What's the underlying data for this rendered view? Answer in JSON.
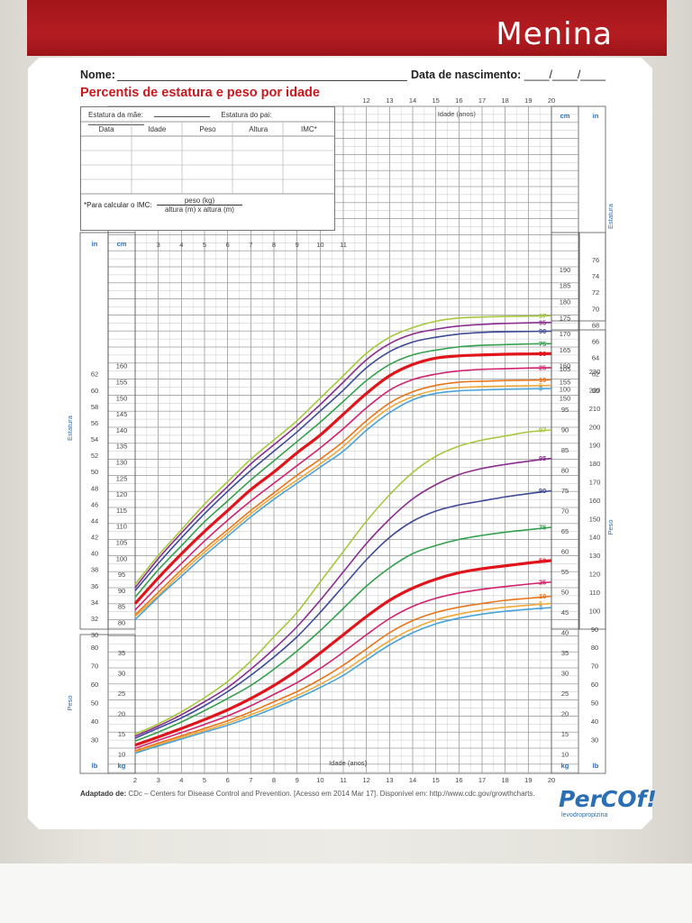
{
  "header": {
    "title": "Menina"
  },
  "form": {
    "name_label": "Nome:",
    "dob_label": "Data de nascimento:",
    "dob_placeholder": "____/____/____",
    "chart_title": "Percentis de estatura e peso por idade",
    "mother_height_label": "Estatura da mãe:",
    "father_height_label": "Estatura do pai:",
    "columns": [
      "Data",
      "Idade",
      "Peso",
      "Altura",
      "IMC*"
    ],
    "bmi_label": "*Para calcular o IMC:",
    "bmi_numerator": "peso (kg)",
    "bmi_denominator": "altura (m) x altura (m)"
  },
  "footer": {
    "adapted_label": "Adaptado de:",
    "source_text": "CDc – Centers for Disease Control and Prevention. [Acesso em 2014 Mar 17]. Disponível em: http://www.cdc.gov/growthcharts."
  },
  "brand": {
    "logo_text": "PerCOf!",
    "logo_sub": "levodropropizina"
  },
  "colors": {
    "p97": "#a6c83c",
    "p95": "#8b2d8f",
    "p90": "#3f4b97",
    "p75": "#33a14e",
    "p50": "#e0141b",
    "p25": "#d2216e",
    "p10": "#e8751a",
    "p5": "#f2a93b",
    "p3": "#4aa3d8"
  },
  "chart_data": [
    {
      "type": "line",
      "title": "Estatura",
      "xlabel": "Idade (anos)",
      "ylabel": "Estatura",
      "unit": "cm",
      "secondary_unit": "in",
      "xlim": [
        2,
        20
      ],
      "ylim": [
        77,
        177
      ],
      "x": [
        2,
        3,
        4,
        5,
        6,
        7,
        8,
        9,
        10,
        11,
        12,
        13,
        14,
        15,
        16,
        17,
        18,
        19,
        20
      ],
      "series": [
        {
          "name": "97",
          "values": [
            92,
            101,
            109,
            117,
            124,
            131,
            137,
            143,
            150,
            157,
            164,
            169,
            172,
            174,
            175,
            175.3,
            175.5,
            175.6,
            175.7
          ]
        },
        {
          "name": "95",
          "values": [
            91,
            100,
            108,
            115.5,
            122.5,
            129.5,
            135.5,
            141.5,
            148,
            155,
            162,
            167,
            170,
            171.5,
            172.5,
            173,
            173.3,
            173.5,
            173.6
          ]
        },
        {
          "name": "90",
          "values": [
            90,
            98.5,
            106.5,
            114,
            121,
            127.5,
            133.5,
            139.5,
            146,
            152.5,
            159.5,
            164.5,
            167.5,
            169,
            170,
            170.5,
            170.7,
            170.8,
            170.9
          ]
        },
        {
          "name": "75",
          "values": [
            88,
            96.5,
            104,
            111.5,
            118,
            124.5,
            130.5,
            136.5,
            142.5,
            149,
            155.5,
            160.5,
            163.5,
            165,
            166,
            166.5,
            166.7,
            166.9,
            167
          ]
        },
        {
          "name": "50",
          "values": [
            86,
            94,
            101.5,
            108.5,
            115,
            121.5,
            127,
            133,
            138.5,
            145,
            151.5,
            157,
            160.5,
            162.5,
            163.2,
            163.5,
            163.7,
            163.8,
            163.9
          ]
        },
        {
          "name": "25",
          "values": [
            84,
            91.5,
            98.5,
            105.5,
            112,
            118,
            123.5,
            129,
            134.5,
            140.5,
            147,
            152.5,
            155.8,
            157.5,
            158.5,
            159,
            159.2,
            159.4,
            159.5
          ]
        },
        {
          "name": "10",
          "values": [
            82.5,
            89.5,
            96.5,
            103,
            109,
            115,
            120.5,
            126,
            131,
            136.5,
            143,
            148.5,
            152,
            154,
            155,
            155.3,
            155.5,
            155.6,
            155.7
          ]
        },
        {
          "name": "5",
          "values": [
            82,
            88.5,
            95.5,
            102,
            108,
            114,
            119.5,
            124.5,
            129.5,
            135,
            141.5,
            147,
            150.5,
            152.5,
            153.3,
            153.6,
            153.8,
            153.9,
            154
          ]
        },
        {
          "name": "3",
          "values": [
            81,
            88,
            94.5,
            101,
            107,
            113,
            118.5,
            123.5,
            128.5,
            133.5,
            140,
            145.5,
            149.5,
            151.5,
            152.3,
            152.6,
            152.8,
            152.9,
            153
          ]
        }
      ]
    },
    {
      "type": "line",
      "title": "Peso",
      "xlabel": "Idade (anos)",
      "ylabel": "Peso",
      "unit": "kg",
      "secondary_unit": "lb",
      "xlim": [
        2,
        20
      ],
      "ylim": [
        8,
        91
      ],
      "x": [
        2,
        3,
        4,
        5,
        6,
        7,
        8,
        9,
        10,
        11,
        12,
        13,
        14,
        15,
        16,
        17,
        18,
        19,
        20
      ],
      "series": [
        {
          "name": "97",
          "values": [
            15,
            17.5,
            20.5,
            24,
            28,
            33,
            39,
            45,
            52.5,
            60,
            67.5,
            74,
            79.5,
            83.5,
            86,
            87.5,
            88.5,
            89.5,
            90
          ]
        },
        {
          "name": "95",
          "values": [
            14.5,
            17,
            19.8,
            23,
            26.5,
            31,
            36,
            41.5,
            48,
            55,
            62,
            68,
            73,
            76.5,
            79,
            80.5,
            81.5,
            82.3,
            83
          ]
        },
        {
          "name": "90",
          "values": [
            14,
            16.5,
            19,
            22,
            25.5,
            29.5,
            34,
            39,
            45,
            51.5,
            58,
            63.5,
            67.5,
            70,
            71.5,
            72.5,
            73.5,
            74.3,
            75
          ]
        },
        {
          "name": "75",
          "values": [
            13.3,
            15.5,
            18,
            20.8,
            23.8,
            27,
            31,
            35.5,
            40.5,
            46,
            51.5,
            56,
            59.5,
            61.5,
            63,
            64,
            64.8,
            65.4,
            66
          ]
        },
        {
          "name": "50",
          "values": [
            12.3,
            14.3,
            16.4,
            18.6,
            21,
            23.8,
            27,
            30.7,
            35,
            39.5,
            44,
            48,
            51,
            53.2,
            54.8,
            55.8,
            56.5,
            57.2,
            57.8
          ]
        },
        {
          "name": "25",
          "values": [
            11.5,
            13.5,
            15.4,
            17.4,
            19.5,
            22,
            24.8,
            27.7,
            31.2,
            35.2,
            39.5,
            43.5,
            46.5,
            48.5,
            49.8,
            50.7,
            51.4,
            52,
            52.5
          ]
        },
        {
          "name": "10",
          "values": [
            10.9,
            12.8,
            14.6,
            16.4,
            18.3,
            20.5,
            23,
            25.5,
            28.5,
            32,
            36,
            40,
            43,
            45,
            46.3,
            47.2,
            48,
            48.5,
            49
          ]
        },
        {
          "name": "5",
          "values": [
            10.6,
            12.4,
            14.2,
            15.9,
            17.7,
            19.8,
            22,
            24.5,
            27.3,
            30.5,
            34.3,
            38,
            41,
            43.2,
            44.6,
            45.6,
            46.3,
            46.8,
            47.2
          ]
        },
        {
          "name": "3",
          "values": [
            10.3,
            12.1,
            13.8,
            15.5,
            17.2,
            19.2,
            21.4,
            23.8,
            26.5,
            29.5,
            33.3,
            37,
            40,
            42.2,
            43.6,
            44.6,
            45.3,
            45.8,
            46.2
          ]
        }
      ]
    }
  ],
  "axes": {
    "age_label": "Idade (anos)",
    "height_axis_title": "Estatura",
    "weight_axis_title": "Peso",
    "cm_label": "cm",
    "in_label": "in",
    "kg_label": "kg",
    "lb_label": "lb",
    "bottom_ticks": [
      "2",
      "3",
      "4",
      "5",
      "6",
      "7",
      "8",
      "9",
      "10",
      "11",
      "12",
      "13",
      "14",
      "15",
      "16",
      "17",
      "18",
      "19",
      "20"
    ],
    "top_ticks": [
      "12",
      "13",
      "14",
      "15",
      "16",
      "17",
      "18",
      "19",
      "20"
    ],
    "mid_ticks": [
      "3",
      "4",
      "5",
      "6",
      "7",
      "8",
      "9",
      "10",
      "11"
    ],
    "left_cm_ticks": [
      "80",
      "85",
      "90",
      "95",
      "100",
      "105",
      "110",
      "115",
      "120",
      "125",
      "130",
      "135",
      "140",
      "145",
      "150",
      "155",
      "160"
    ],
    "left_in_ticks": [
      "30",
      "32",
      "34",
      "36",
      "38",
      "40",
      "42",
      "44",
      "46",
      "48",
      "50",
      "52",
      "54",
      "56",
      "58",
      "60",
      "62"
    ],
    "left_kg_ticks": [
      "10",
      "15",
      "20",
      "25",
      "30",
      "35"
    ],
    "left_lb_ticks": [
      "30",
      "40",
      "50",
      "60",
      "70",
      "80"
    ],
    "right_cm_ticks": [
      "150",
      "155",
      "160",
      "165",
      "170",
      "175",
      "180",
      "185",
      "190"
    ],
    "right_in_ticks": [
      "60",
      "62",
      "64",
      "66",
      "68",
      "70",
      "72",
      "74",
      "76"
    ],
    "right_kg_ticks": [
      "10",
      "15",
      "20",
      "25",
      "30",
      "35",
      "40",
      "45",
      "50",
      "55",
      "60",
      "65",
      "70",
      "75",
      "80",
      "85",
      "90",
      "95",
      "100",
      "105"
    ],
    "right_lb_ticks": [
      "30",
      "40",
      "50",
      "60",
      "70",
      "80",
      "90",
      "100",
      "110",
      "120",
      "130",
      "140",
      "150",
      "160",
      "170",
      "180",
      "190",
      "200",
      "210",
      "220",
      "230"
    ]
  }
}
